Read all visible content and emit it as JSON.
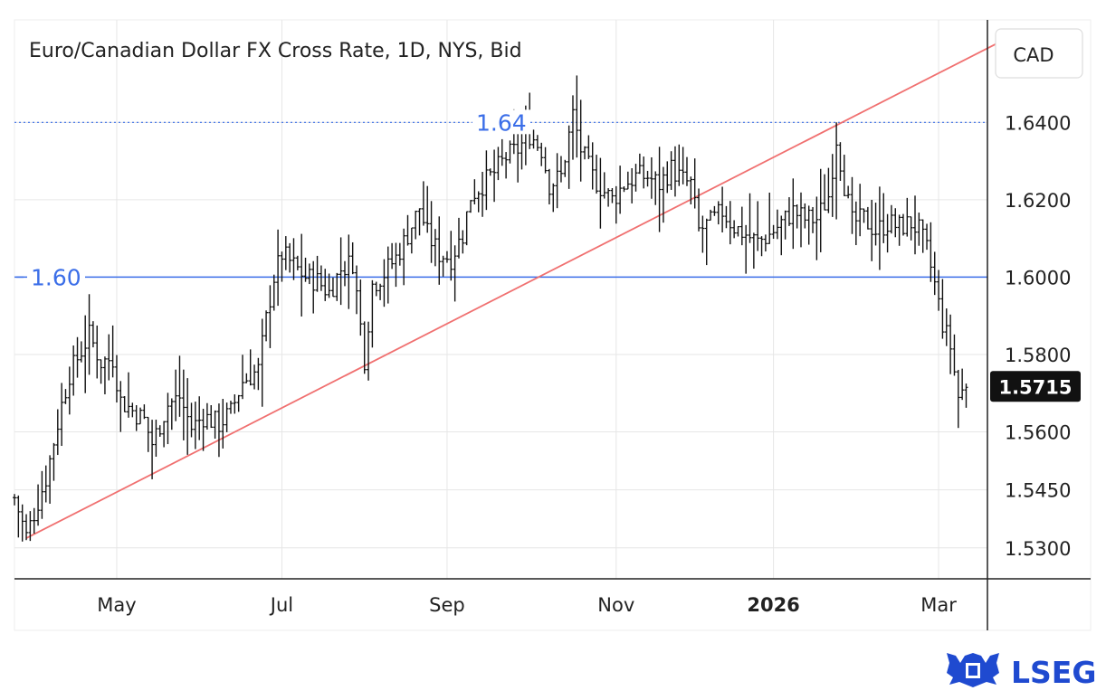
{
  "chart_data": {
    "type": "ohlc",
    "title": "Euro/Canadian Dollar FX Cross Rate, 1D, NYS, Bid",
    "currency": "CAD",
    "y_range": [
      1.522,
      1.6665
    ],
    "y_ticks": [
      {
        "label": "1.6400",
        "value": 1.64
      },
      {
        "label": "1.6200",
        "value": 1.62
      },
      {
        "label": "1.6000",
        "value": 1.6
      },
      {
        "label": "1.5800",
        "value": 1.58
      },
      {
        "label": "1.5600",
        "value": 1.56
      },
      {
        "label": "1.5450",
        "value": 1.545
      },
      {
        "label": "1.5300",
        "value": 1.53
      }
    ],
    "x_ticks": [
      {
        "label": "May",
        "bar": 26,
        "bold": false
      },
      {
        "label": "Jul",
        "bar": 68,
        "bold": false
      },
      {
        "label": "Sep",
        "bar": 110,
        "bold": false
      },
      {
        "label": "Nov",
        "bar": 153,
        "bold": false
      },
      {
        "label": "2026",
        "bar": 193,
        "bold": true
      },
      {
        "label": "Mar",
        "bar": 235,
        "bold": false
      }
    ],
    "horizontal_lines": [
      {
        "label": "1.64",
        "value": 1.64,
        "style": "dotted",
        "color": "#3b6ee8"
      },
      {
        "label": "1.60",
        "value": 1.6,
        "style": "solid",
        "color": "#3b6ee8"
      }
    ],
    "trendline": {
      "color": "#f07070",
      "start": {
        "bar": 3,
        "value": 1.5325
      },
      "end": {
        "bar": 250,
        "value": 1.6605
      }
    },
    "current_price": {
      "label": "1.5715",
      "value": 1.5715
    },
    "bar_color": "#111111",
    "last_bar_index": 242,
    "anchors": [
      [
        0,
        1.543
      ],
      [
        3,
        1.533
      ],
      [
        8,
        1.548
      ],
      [
        12,
        1.567
      ],
      [
        14,
        1.575
      ],
      [
        19,
        1.585
      ],
      [
        22,
        1.578
      ],
      [
        25,
        1.579
      ],
      [
        27,
        1.568
      ],
      [
        33,
        1.563
      ],
      [
        35,
        1.557
      ],
      [
        39,
        1.567
      ],
      [
        42,
        1.569
      ],
      [
        45,
        1.561
      ],
      [
        48,
        1.564
      ],
      [
        52,
        1.562
      ],
      [
        55,
        1.565
      ],
      [
        58,
        1.573
      ],
      [
        62,
        1.576
      ],
      [
        64,
        1.589
      ],
      [
        66,
        1.6
      ],
      [
        68,
        1.606
      ],
      [
        71,
        1.603
      ],
      [
        74,
        1.6
      ],
      [
        77,
        1.599
      ],
      [
        80,
        1.596
      ],
      [
        83,
        1.602
      ],
      [
        86,
        1.604
      ],
      [
        89,
        1.579
      ],
      [
        91,
        1.598
      ],
      [
        94,
        1.601
      ],
      [
        97,
        1.605
      ],
      [
        100,
        1.611
      ],
      [
        103,
        1.618
      ],
      [
        105,
        1.611
      ],
      [
        108,
        1.606
      ],
      [
        111,
        1.605
      ],
      [
        114,
        1.611
      ],
      [
        116,
        1.621
      ],
      [
        119,
        1.624
      ],
      [
        122,
        1.627
      ],
      [
        125,
        1.631
      ],
      [
        128,
        1.633
      ],
      [
        131,
        1.637
      ],
      [
        134,
        1.633
      ],
      [
        136,
        1.624
      ],
      [
        139,
        1.626
      ],
      [
        142,
        1.642
      ],
      [
        144,
        1.633
      ],
      [
        147,
        1.626
      ],
      [
        150,
        1.622
      ],
      [
        152,
        1.62
      ],
      [
        155,
        1.624
      ],
      [
        158,
        1.626
      ],
      [
        161,
        1.626
      ],
      [
        164,
        1.624
      ],
      [
        167,
        1.628
      ],
      [
        170,
        1.625
      ],
      [
        172,
        1.624
      ],
      [
        174,
        1.612
      ],
      [
        177,
        1.614
      ],
      [
        180,
        1.617
      ],
      [
        183,
        1.613
      ],
      [
        186,
        1.611
      ],
      [
        189,
        1.609
      ],
      [
        192,
        1.611
      ],
      [
        195,
        1.614
      ],
      [
        198,
        1.617
      ],
      [
        201,
        1.615
      ],
      [
        204,
        1.615
      ],
      [
        207,
        1.621
      ],
      [
        209,
        1.636
      ],
      [
        211,
        1.624
      ],
      [
        213,
        1.614
      ],
      [
        216,
        1.615
      ],
      [
        219,
        1.612
      ],
      [
        222,
        1.614
      ],
      [
        225,
        1.613
      ],
      [
        228,
        1.614
      ],
      [
        230,
        1.612
      ],
      [
        232,
        1.607
      ],
      [
        234,
        1.598
      ],
      [
        236,
        1.588
      ],
      [
        238,
        1.582
      ],
      [
        240,
        1.569
      ],
      [
        242,
        1.5715
      ]
    ]
  },
  "brand": {
    "name": "LSEG",
    "color": "#1f4ad0"
  }
}
